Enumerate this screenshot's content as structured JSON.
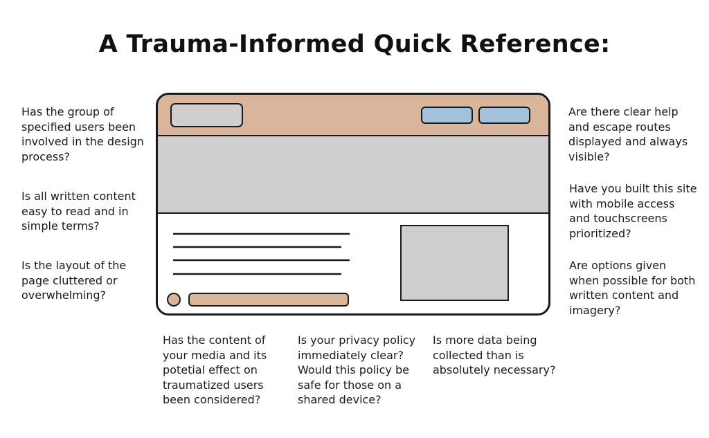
{
  "title": "A Trauma-Informed Quick Reference:",
  "colors": {
    "header": "#d9b69b",
    "hero": "#cfcfcf",
    "nav_button": "#a3c1da",
    "logo_box": "#cfcfcf",
    "image_placeholder": "#cfcfcf",
    "footer_bar": "#d9b69b",
    "outline": "#1a1a1a"
  },
  "questions": {
    "left": [
      "Has the group of\nspecified users been\ninvolved in the design\nprocess?",
      "Is all written content\neasy to read and in\nsimple terms?",
      "Is the layout of the\npage cluttered or\noverwhelming?"
    ],
    "right": [
      "Are there clear help\nand escape routes\ndisplayed and always\nvisible?",
      "Have you built this site\nwith mobile access\nand touchscreens\nprioritized?",
      "Are options given\nwhen possible for both\nwritten content and\nimagery?"
    ],
    "bottom": [
      "Has the content of\nyour media and its\npotetial effect on\ntraumatized users\nbeen considered?",
      "Is your privacy policy\nimmediately clear?\nWould this policy be\nsafe for those on a\nshared device?",
      "Is more data being\ncollected than is\nabsolutely necessary?"
    ]
  }
}
